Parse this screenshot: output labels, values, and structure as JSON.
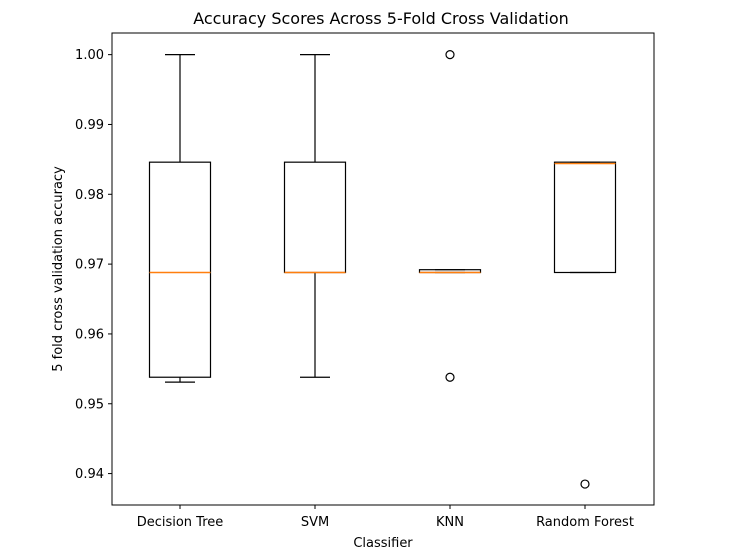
{
  "chart_data": {
    "type": "box",
    "title": "Accuracy Scores Across 5-Fold Cross Validation",
    "xlabel": "Classifier",
    "ylabel": "5 fold cross validation accuracy",
    "categories": [
      "Decision Tree",
      "SVM",
      "KNN",
      "Random Forest"
    ],
    "ylim": [
      0.9355,
      1.0031
    ],
    "yticks": [
      0.94,
      0.95,
      0.96,
      0.97,
      0.98,
      0.99,
      1.0
    ],
    "ytick_labels": [
      "0.94",
      "0.95",
      "0.96",
      "0.97",
      "0.98",
      "0.99",
      "1.00"
    ],
    "boxes": [
      {
        "name": "Decision Tree",
        "whisker_low": 0.9531,
        "q1": 0.9538,
        "median": 0.9688,
        "q3": 0.9846,
        "whisker_high": 1.0,
        "outliers": []
      },
      {
        "name": "SVM",
        "whisker_low": 0.9538,
        "q1": 0.9688,
        "median": 0.9688,
        "q3": 0.9846,
        "whisker_high": 1.0,
        "outliers": []
      },
      {
        "name": "KNN",
        "whisker_low": 0.9688,
        "q1": 0.9688,
        "median": 0.9688,
        "q3": 0.9692,
        "whisker_high": 0.9692,
        "outliers": [
          1.0,
          0.9538
        ]
      },
      {
        "name": "Random Forest",
        "whisker_low": 0.9688,
        "q1": 0.9688,
        "median": 0.9844,
        "q3": 0.9846,
        "whisker_high": 0.9846,
        "outliers": [
          0.9385
        ]
      }
    ],
    "colors": {
      "box": "#000000",
      "median": "#ff7f0e",
      "outlier": "#000000"
    }
  }
}
